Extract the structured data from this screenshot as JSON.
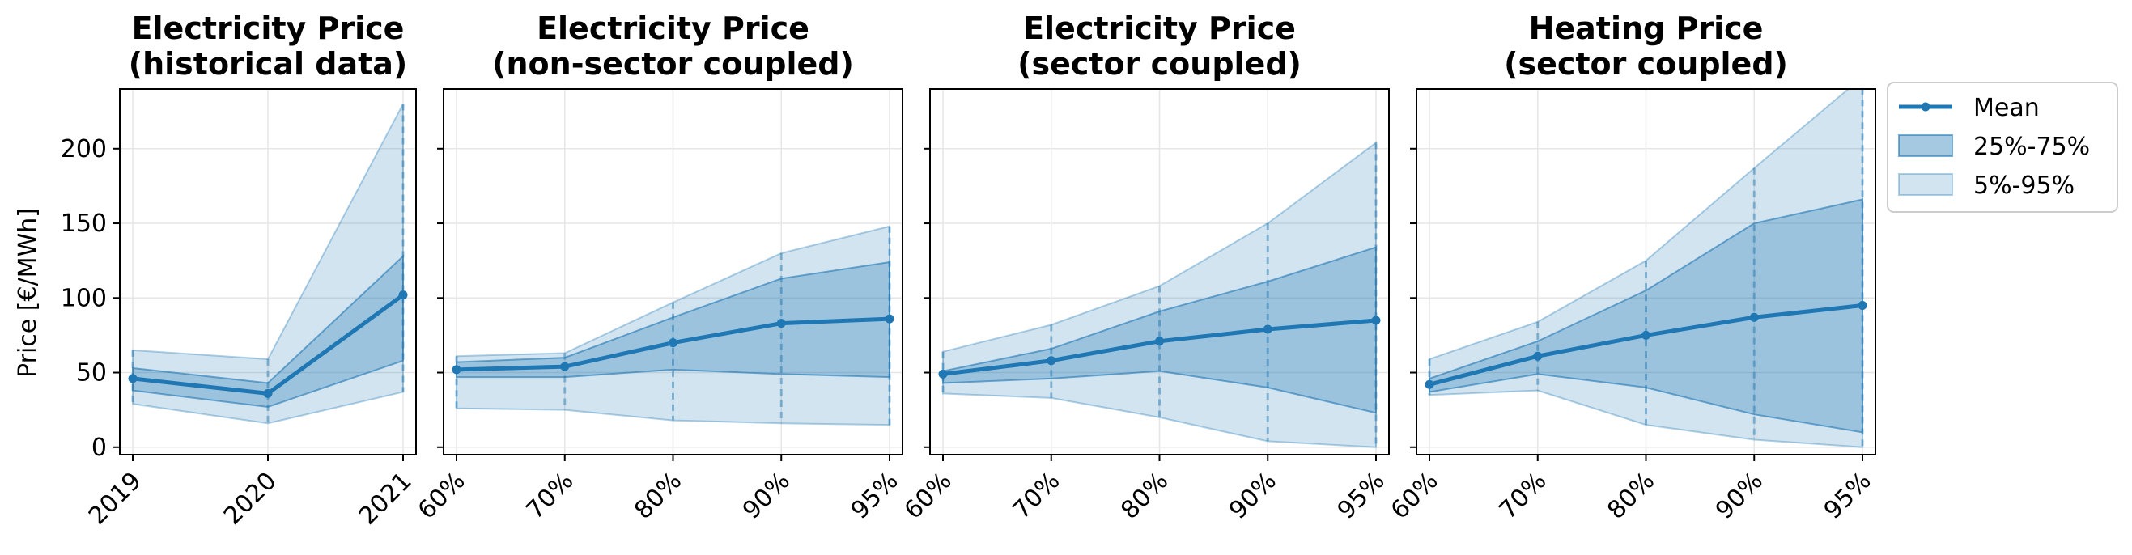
{
  "figure": {
    "ylabel": "Price [€/MWh]",
    "colors": {
      "line": "#1f77b4",
      "band_iqr": "#1f77b4",
      "band_outer": "#1f77b4",
      "frame": "#000000",
      "grid": "#e6e6e6"
    }
  },
  "legend": {
    "placement": "outside-right-top",
    "items": [
      {
        "key": "mean",
        "label": "Mean"
      },
      {
        "key": "iqr",
        "label": "25%-75%"
      },
      {
        "key": "outer",
        "label": "5%-95%"
      }
    ]
  },
  "chart_data": [
    {
      "type": "line",
      "title": "Electricity Price\n(historical data)",
      "categories": [
        "2019",
        "2020",
        "2021"
      ],
      "ylim": [
        -5,
        240
      ],
      "yticks": [
        0,
        50,
        100,
        150,
        200
      ],
      "grid": true,
      "series": [
        {
          "name": "Mean",
          "values": [
            46,
            36,
            102
          ]
        },
        {
          "name": "25%-75%",
          "lower": [
            38,
            27,
            58
          ],
          "upper": [
            53,
            43,
            128
          ]
        },
        {
          "name": "5%-95%",
          "lower": [
            29,
            16,
            37
          ],
          "upper": [
            65,
            59,
            230
          ]
        }
      ]
    },
    {
      "type": "line",
      "title": "Electricity Price\n(non-sector coupled)",
      "categories": [
        "60%",
        "70%",
        "80%",
        "90%",
        "95%"
      ],
      "ylim": [
        -5,
        240
      ],
      "yticks": [
        0,
        50,
        100,
        150,
        200
      ],
      "grid": true,
      "series": [
        {
          "name": "Mean",
          "values": [
            52,
            54,
            70,
            83,
            86
          ]
        },
        {
          "name": "25%-75%",
          "lower": [
            47,
            47,
            52,
            49,
            47
          ],
          "upper": [
            57,
            60,
            87,
            113,
            124
          ]
        },
        {
          "name": "5%-95%",
          "lower": [
            26,
            25,
            18,
            16,
            15
          ],
          "upper": [
            61,
            63,
            97,
            130,
            148
          ]
        }
      ]
    },
    {
      "type": "line",
      "title": "Electricity Price\n(sector coupled)",
      "categories": [
        "60%",
        "70%",
        "80%",
        "90%",
        "95%"
      ],
      "ylim": [
        -5,
        240
      ],
      "yticks": [
        0,
        50,
        100,
        150,
        200
      ],
      "grid": true,
      "series": [
        {
          "name": "Mean",
          "values": [
            49,
            58,
            71,
            79,
            85
          ]
        },
        {
          "name": "25%-75%",
          "lower": [
            43,
            46,
            51,
            40,
            23
          ],
          "upper": [
            51,
            66,
            91,
            111,
            134
          ]
        },
        {
          "name": "5%-95%",
          "lower": [
            36,
            33,
            20,
            4,
            0
          ],
          "upper": [
            64,
            82,
            108,
            150,
            204
          ]
        }
      ]
    },
    {
      "type": "line",
      "title": "Heating Price\n(sector coupled)",
      "categories": [
        "60%",
        "70%",
        "80%",
        "90%",
        "95%"
      ],
      "ylim": [
        -5,
        240
      ],
      "yticks": [
        0,
        50,
        100,
        150,
        200
      ],
      "grid": true,
      "series": [
        {
          "name": "Mean",
          "values": [
            42,
            61,
            75,
            87,
            95
          ]
        },
        {
          "name": "25%-75%",
          "lower": [
            37,
            49,
            40,
            22,
            10
          ],
          "upper": [
            46,
            71,
            105,
            150,
            166
          ]
        },
        {
          "name": "5%-95%",
          "lower": [
            35,
            38,
            15,
            5,
            0
          ],
          "upper": [
            59,
            84,
            125,
            187,
            248
          ]
        }
      ]
    }
  ]
}
